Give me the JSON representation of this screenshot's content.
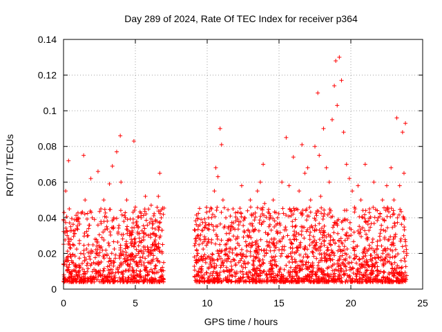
{
  "chart_data": {
    "type": "scatter",
    "title": "Day 289 of 2024, Rate Of TEC Index for receiver p364",
    "xlabel": "GPS time / hours",
    "ylabel": "ROTI / TECUs",
    "xlim": [
      0,
      25
    ],
    "ylim": [
      0,
      0.14
    ],
    "x_ticks": [
      0,
      5,
      10,
      15,
      20,
      25
    ],
    "x_tick_labels": [
      "0",
      "5",
      "10",
      "15",
      "20",
      "25"
    ],
    "y_ticks": [
      0,
      0.02,
      0.04,
      0.06,
      0.08,
      0.1,
      0.12,
      0.14
    ],
    "y_tick_labels": [
      "0",
      "0.02",
      "0.04",
      "0.06",
      "0.08",
      "0.1",
      "0.12",
      "0.14"
    ],
    "grid": true,
    "marker": "+",
    "color": "#ff0000",
    "series": [
      {
        "name": "ROTI",
        "x": [
          0.05,
          0.15,
          0.25,
          0.35,
          0.4,
          0.5,
          0.65,
          0.8,
          1.0,
          1.2,
          1.4,
          1.5,
          1.7,
          1.9,
          2.0,
          2.2,
          2.4,
          2.6,
          2.8,
          3.0,
          3.2,
          3.4,
          3.5,
          3.7,
          3.8,
          3.95,
          4.0,
          4.2,
          4.4,
          4.6,
          4.9,
          5.0,
          5.2,
          5.4,
          5.7,
          5.9,
          6.1,
          6.3,
          6.5,
          6.6,
          6.7,
          6.8,
          6.9,
          0.3,
          0.6,
          1.1,
          2.3,
          3.3,
          4.5,
          5.5,
          6.4,
          9.2,
          9.35,
          9.5,
          9.7,
          9.9,
          10.1,
          10.3,
          10.5,
          10.6,
          10.75,
          10.9,
          11.0,
          11.1,
          11.3,
          11.5,
          11.8,
          12.0,
          12.2,
          12.4,
          12.6,
          12.8,
          13.0,
          13.2,
          13.5,
          13.7,
          13.9,
          14.0,
          14.3,
          14.6,
          14.9,
          15.2,
          15.5,
          15.7,
          16.0,
          16.2,
          16.4,
          16.6,
          16.8,
          17.0,
          17.2,
          17.5,
          17.7,
          17.8,
          17.9,
          18.1,
          18.3,
          18.5,
          18.7,
          18.85,
          18.95,
          19.05,
          19.2,
          19.35,
          19.5,
          19.7,
          19.9,
          20.1,
          20.3,
          20.5,
          20.7,
          21.0,
          21.3,
          21.6,
          21.9,
          22.2,
          22.5,
          22.8,
          23.0,
          23.2,
          23.4,
          23.6,
          23.7,
          23.8,
          9.6,
          10.2,
          11.4,
          12.5,
          13.6,
          14.8,
          15.8,
          16.7,
          17.6,
          18.6,
          19.6,
          20.6,
          21.8,
          22.9,
          23.5
        ],
        "y": [
          0.014,
          0.055,
          0.03,
          0.072,
          0.045,
          0.035,
          0.025,
          0.033,
          0.04,
          0.02,
          0.075,
          0.05,
          0.03,
          0.062,
          0.04,
          0.028,
          0.066,
          0.045,
          0.05,
          0.035,
          0.059,
          0.069,
          0.04,
          0.077,
          0.032,
          0.086,
          0.06,
          0.038,
          0.05,
          0.03,
          0.083,
          0.046,
          0.035,
          0.04,
          0.052,
          0.03,
          0.047,
          0.025,
          0.038,
          0.052,
          0.065,
          0.04,
          0.025,
          0.018,
          0.015,
          0.012,
          0.02,
          0.016,
          0.014,
          0.018,
          0.013,
          0.016,
          0.02,
          0.036,
          0.033,
          0.028,
          0.04,
          0.045,
          0.055,
          0.068,
          0.063,
          0.09,
          0.081,
          0.05,
          0.04,
          0.035,
          0.045,
          0.028,
          0.036,
          0.058,
          0.04,
          0.03,
          0.05,
          0.042,
          0.055,
          0.06,
          0.07,
          0.048,
          0.035,
          0.05,
          0.04,
          0.06,
          0.085,
          0.058,
          0.074,
          0.045,
          0.055,
          0.081,
          0.065,
          0.068,
          0.05,
          0.08,
          0.11,
          0.075,
          0.052,
          0.09,
          0.068,
          0.06,
          0.095,
          0.114,
          0.128,
          0.103,
          0.13,
          0.117,
          0.088,
          0.07,
          0.062,
          0.055,
          0.045,
          0.058,
          0.05,
          0.07,
          0.045,
          0.06,
          0.04,
          0.05,
          0.058,
          0.068,
          0.05,
          0.096,
          0.058,
          0.088,
          0.065,
          0.093,
          0.017,
          0.014,
          0.019,
          0.012,
          0.016,
          0.013,
          0.02,
          0.018,
          0.022,
          0.025,
          0.02,
          0.017,
          0.015,
          0.018,
          0.016
        ]
      }
    ]
  }
}
